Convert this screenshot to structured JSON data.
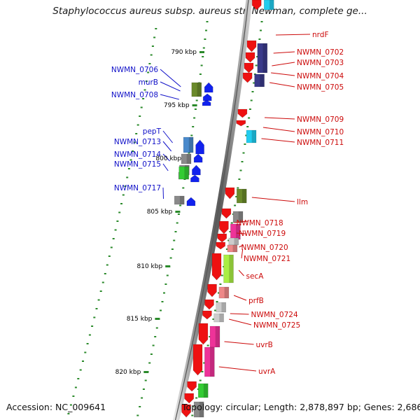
{
  "title": "Staphylococcus aureus subsp. aureus str. Newman, complete ge...",
  "footer": {
    "accession": "Accession: NC_009641",
    "summary": "Topology: circular; Length: 2,878,897 bp; Genes: 2,686"
  },
  "scale_labels": [
    "790 kbp",
    "795 kbp",
    "800 kbp",
    "805 kbp",
    "810 kbp",
    "815 kbp",
    "820 kbp"
  ],
  "left_gene_labels": [
    "NWMN_0706",
    "murB",
    "NWMN_0708",
    "pepT",
    "NWMN_0713",
    "NWMN_0714",
    "NWMN_0715",
    "NWMN_0717"
  ],
  "right_gene_labels": [
    "nrdF",
    "NWMN_0702",
    "NWMN_0703",
    "NWMN_0704",
    "NWMN_0705",
    "NWMN_0709",
    "NWMN_0710",
    "NWMN_0711",
    "llm",
    "NWMN_0718",
    "NWMN_0719",
    "NWMN_0720",
    "NWMN_0721",
    "secA",
    "prfB",
    "NWMN_0724",
    "NWMN_0725",
    "uvrB",
    "uvrA"
  ],
  "colors": {
    "forward_strand": "#ee1111",
    "reverse_strand": "#1122ee",
    "forward_label": "#cc0a0a",
    "reverse_label": "#1010c8",
    "backbone": "#8a8a8a",
    "tick": "#2a8a2a",
    "cog_cyan": "#22ccee",
    "cog_navy": "#3a3a8a",
    "cog_olive": "#6a8a2a",
    "cog_grey": "#8a8a8a",
    "cog_steelblue": "#4a8acc",
    "cog_green": "#33cc33",
    "cog_pink": "#ee3399",
    "cog_lime": "#aaee44",
    "cog_salmon": "#ee8888",
    "cog_silver": "#cccccc"
  }
}
